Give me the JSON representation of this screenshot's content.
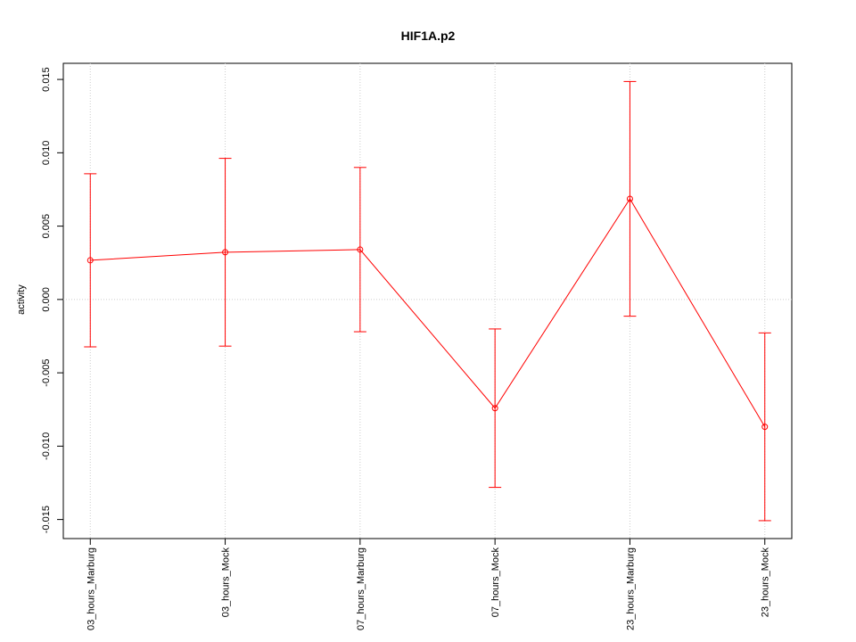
{
  "chart_data": {
    "type": "line",
    "title": "HIF1A.p2",
    "y_label": "activity",
    "categories": [
      "03_hours_Marburg",
      "03_hours_Mock",
      "07_hours_Marburg",
      "07_hours_Mock",
      "23_hours_Marburg",
      "23_hours_Mock"
    ],
    "series": [
      {
        "color": "#ff0000",
        "values": [
          0.00267,
          0.00322,
          0.0034,
          -0.00741,
          0.00686,
          -0.00868
        ],
        "errors": [
          0.0059,
          0.0064,
          0.0056,
          0.0054,
          0.008,
          0.0064
        ]
      }
    ],
    "ylim": [
      -0.0163,
      0.0161
    ],
    "yticks": [
      -0.015,
      {
        "value": -0.01,
        "label": "-0.010"
      },
      -0.005,
      {
        "value": 0,
        "label": "0.000"
      },
      0.005,
      {
        "value": 0.01,
        "label": "0.010"
      },
      0.015
    ],
    "grid": true,
    "hline": 0
  }
}
